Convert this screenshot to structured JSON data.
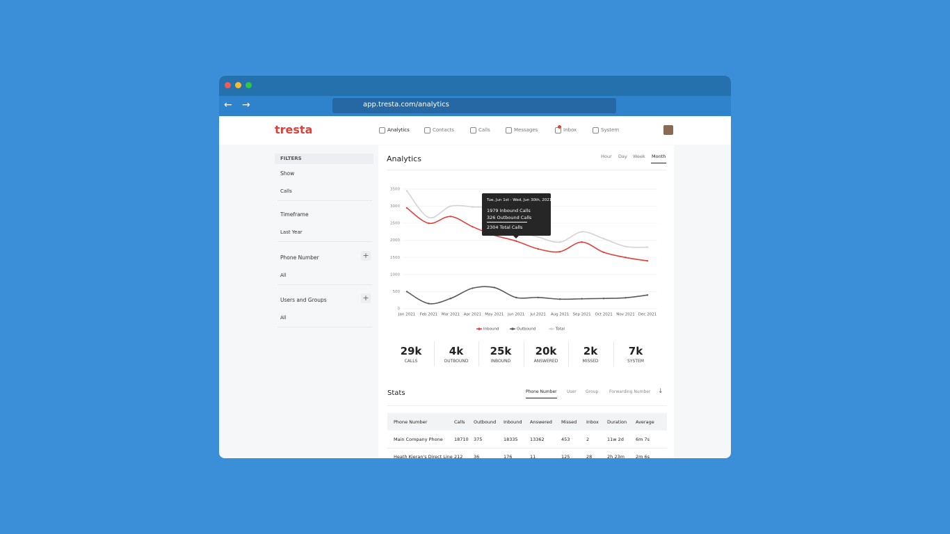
{
  "browser": {
    "url": "app.tresta.com/analytics"
  },
  "nav": {
    "logo": "tresta",
    "items": [
      "Analytics",
      "Contacts",
      "Calls",
      "Messages",
      "Inbox",
      "System"
    ]
  },
  "sidebar": {
    "heading": "FILTERS",
    "filters": [
      {
        "label": "Show",
        "value": "Calls"
      },
      {
        "label": "Timeframe",
        "value": "Last Year"
      },
      {
        "label": "Phone Number",
        "value": "All"
      },
      {
        "label": "Users and Groups",
        "value": "All"
      }
    ]
  },
  "analytics": {
    "title": "Analytics",
    "ranges": [
      "Hour",
      "Day",
      "Week",
      "Month"
    ],
    "tooltip": {
      "title": "Tue, Jun 1st - Wed, Jun 30th, 2021",
      "lines": [
        "1979 Inbound Calls",
        "326 Outbound Calls",
        "2304 Total Calls"
      ]
    },
    "summary": [
      {
        "value": "29k",
        "label": "CALLS"
      },
      {
        "value": "4k",
        "label": "OUTBOUND"
      },
      {
        "value": "25k",
        "label": "INBOUND"
      },
      {
        "value": "20k",
        "label": "ANSWERED"
      },
      {
        "value": "2k",
        "label": "MISSED"
      },
      {
        "value": "7k",
        "label": "SYSTEM"
      }
    ]
  },
  "chart_data": {
    "type": "line",
    "categories": [
      "Jan 2021",
      "Feb 2021",
      "Mar 2021",
      "Apr 2021",
      "May 2021",
      "Jun 2021",
      "Jul 2021",
      "Aug 2021",
      "Sep 2021",
      "Oct 2021",
      "Nov 2021",
      "Dec 2021"
    ],
    "series": [
      {
        "name": "Inbound",
        "color": "#e0403a",
        "values": [
          2950,
          2500,
          2700,
          2400,
          2150,
          1979,
          1750,
          1670,
          1950,
          1650,
          1500,
          1400
        ]
      },
      {
        "name": "Outbound",
        "color": "#555a60",
        "values": [
          500,
          150,
          300,
          600,
          620,
          326,
          330,
          280,
          290,
          300,
          320,
          400
        ]
      },
      {
        "name": "Total",
        "color": "#d2d3d6",
        "values": [
          3450,
          2670,
          3000,
          2980,
          2900,
          2304,
          2100,
          1950,
          2250,
          2050,
          1820,
          1800
        ]
      }
    ],
    "ylim": [
      0,
      3500
    ],
    "yticks": [
      0,
      500,
      1000,
      1500,
      2000,
      2500,
      3000,
      3500
    ],
    "grid": true,
    "legend": "bottom"
  },
  "stats": {
    "title": "Stats",
    "tabs": [
      "Phone Number",
      "User",
      "Group",
      "Forwarding Number"
    ],
    "table": {
      "headers": [
        "Phone Number",
        "Calls",
        "Outbound",
        "Inbound",
        "Answered",
        "Missed",
        "Inbox",
        "Duration",
        "Average"
      ],
      "rows": [
        [
          "Main Company Phone",
          "18710",
          "375",
          "18335",
          "13362",
          "453",
          "2",
          "11w 2d",
          "6m 7s"
        ],
        [
          "Heath Kieran's Direct Line",
          "212",
          "36",
          "176",
          "11",
          "125",
          "28",
          "2h 23m",
          "2m 6s"
        ]
      ]
    }
  }
}
